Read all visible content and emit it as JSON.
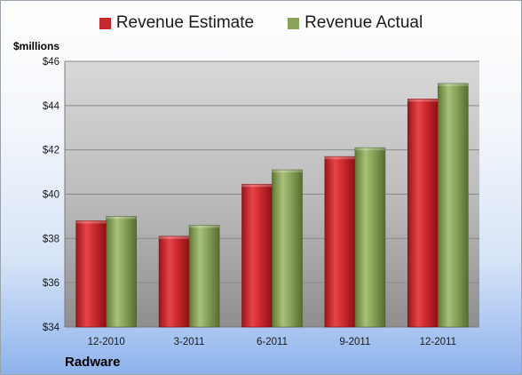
{
  "chart_data": {
    "type": "bar",
    "categories": [
      "12-2010",
      "3-2011",
      "6-2011",
      "9-2011",
      "12-2011"
    ],
    "series": [
      {
        "name": "Revenue Estimate",
        "color": "#c8282c",
        "values": [
          38.8,
          38.1,
          40.45,
          41.7,
          44.3
        ]
      },
      {
        "name": "Revenue Actual",
        "color": "#8aa35a",
        "values": [
          39.0,
          38.6,
          41.1,
          42.1,
          45.0
        ]
      }
    ],
    "ylabel": "$millions",
    "ylim": [
      34,
      46
    ],
    "yticks": [
      34,
      36,
      38,
      40,
      42,
      44,
      46
    ],
    "ytick_labels": [
      "$34",
      "$36",
      "$38",
      "$40",
      "$42",
      "$44",
      "$46"
    ],
    "grid": true,
    "legend_position": "top"
  },
  "company": "Radware"
}
